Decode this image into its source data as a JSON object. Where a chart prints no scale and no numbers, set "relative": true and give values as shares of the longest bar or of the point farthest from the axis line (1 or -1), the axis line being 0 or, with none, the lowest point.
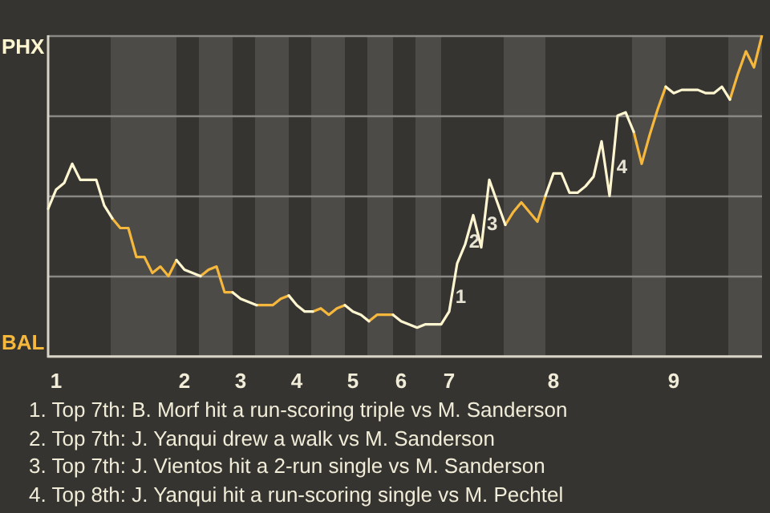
{
  "chart_data": {
    "type": "line",
    "relative": true,
    "legend": "left",
    "grid": true,
    "marker": "none",
    "categories": [
      null,
      "1",
      null,
      null,
      null,
      null,
      null,
      null,
      null,
      null,
      null,
      null,
      null,
      null,
      null,
      null,
      null,
      "2",
      null,
      null,
      null,
      null,
      null,
      null,
      "3",
      null,
      null,
      null,
      null,
      null,
      null,
      "4",
      null,
      null,
      null,
      null,
      null,
      null,
      "5",
      null,
      null,
      null,
      null,
      null,
      "6",
      null,
      null,
      null,
      null,
      null,
      "7",
      null,
      null,
      null,
      null,
      null,
      null,
      null,
      null,
      null,
      null,
      null,
      null,
      "8",
      null,
      null,
      null,
      null,
      null,
      null,
      null,
      null,
      null,
      null,
      null,
      null,
      null,
      null,
      "9",
      null,
      null,
      null,
      null,
      null,
      null,
      null,
      null,
      null,
      null,
      null
    ],
    "series": [
      {
        "name": "PHX",
        "color": "#fdf6d0",
        "values": [
          0.46,
          0.52,
          0.54,
          0.6,
          0.55,
          0.55,
          0.55,
          0.47,
          0.43,
          null,
          null,
          null,
          null,
          null,
          null,
          null,
          0.3,
          0.27,
          0.26,
          0.25,
          null,
          null,
          null,
          0.2,
          0.18,
          0.17,
          0.16,
          null,
          null,
          null,
          0.19,
          0.16,
          0.14,
          0.14,
          null,
          null,
          null,
          0.16,
          0.14,
          0.13,
          0.11,
          null,
          null,
          0.13,
          0.11,
          0.1,
          0.09,
          0.1,
          0.1,
          0.1,
          0.14,
          0.29,
          0.35,
          0.44,
          0.34,
          0.55,
          0.48,
          0.41,
          null,
          null,
          null,
          null,
          0.5,
          0.57,
          0.57,
          0.51,
          0.51,
          0.53,
          0.56,
          0.67,
          0.5,
          0.75,
          0.76,
          0.7,
          null,
          null,
          null,
          0.84,
          0.82,
          0.83,
          0.83,
          0.83,
          0.82,
          0.82,
          0.84,
          0.8,
          null,
          null,
          null,
          null
        ]
      },
      {
        "name": "BAL",
        "color": "#f5b83d",
        "values": [
          null,
          null,
          null,
          null,
          null,
          null,
          null,
          null,
          0.43,
          0.4,
          0.4,
          0.31,
          0.31,
          0.26,
          0.28,
          0.25,
          0.3,
          null,
          null,
          0.25,
          0.27,
          0.28,
          0.2,
          0.2,
          null,
          null,
          0.16,
          0.16,
          0.16,
          0.18,
          0.19,
          null,
          null,
          0.14,
          0.15,
          0.13,
          0.15,
          0.16,
          null,
          null,
          0.11,
          0.13,
          0.13,
          0.13,
          null,
          null,
          null,
          null,
          null,
          null,
          null,
          null,
          null,
          null,
          null,
          null,
          null,
          0.41,
          0.45,
          0.48,
          0.45,
          0.42,
          0.5,
          null,
          null,
          null,
          null,
          null,
          null,
          null,
          null,
          null,
          null,
          0.7,
          0.6,
          0.69,
          0.77,
          0.84,
          null,
          null,
          null,
          null,
          null,
          null,
          null,
          0.8,
          0.88,
          0.95,
          0.9,
          1.0
        ]
      }
    ],
    "annotations": [
      "1",
      "2",
      "3",
      "4",
      "1. Top 7th: B. Morf hit a run-scoring triple vs M. Sanderson",
      "2. Top 7th: J. Yanqui drew a walk vs M. Sanderson",
      "3. Top 7th: J. Vientos hit a 2-run single vs M. Sanderson",
      "4. Top 8th: J. Yanqui hit a run-scoring single vs M. Pechtel"
    ]
  }
}
